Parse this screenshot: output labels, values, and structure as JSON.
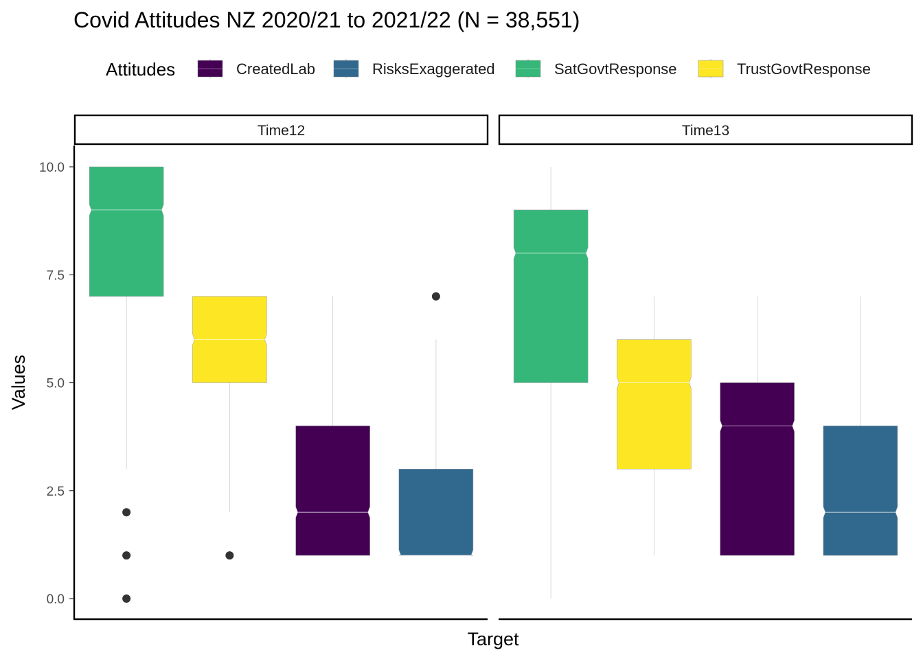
{
  "chart_data": {
    "type": "boxplot",
    "title": "Covid Attitudes NZ 2020/21 to 2021/22 (N = 38,551)",
    "xlabel": "Target",
    "ylabel": "Values",
    "ylim": [
      0,
      10
    ],
    "yticks": [
      "0.0",
      "2.5",
      "5.0",
      "7.5",
      "10.0"
    ],
    "legend": {
      "title": "Attitudes",
      "position": "top",
      "entries": [
        {
          "name": "CreatedLab",
          "color": "#440154"
        },
        {
          "name": "RisksExaggerated",
          "color": "#31688E"
        },
        {
          "name": "SatGovtResponse",
          "color": "#35B779"
        },
        {
          "name": "TrustGovtResponse",
          "color": "#FDE725"
        }
      ]
    },
    "notched": true,
    "grid": false,
    "panels": [
      {
        "label": "Time12",
        "boxes": [
          {
            "series": "SatGovtResponse",
            "color": "#35B779",
            "q1": 7,
            "median": 9,
            "q3": 10,
            "whisker_low": 3,
            "whisker_high": 10,
            "outliers": [
              0,
              1,
              2
            ]
          },
          {
            "series": "TrustGovtResponse",
            "color": "#FDE725",
            "q1": 5,
            "median": 6,
            "q3": 7,
            "whisker_low": 2,
            "whisker_high": 7,
            "outliers": [
              1
            ]
          },
          {
            "series": "CreatedLab",
            "color": "#440154",
            "q1": 1,
            "median": 2,
            "q3": 4,
            "whisker_low": 1,
            "whisker_high": 7,
            "outliers": []
          },
          {
            "series": "RisksExaggerated",
            "color": "#31688E",
            "q1": 1,
            "median": 1,
            "q3": 3,
            "whisker_low": 1,
            "whisker_high": 6,
            "outliers": [
              7
            ]
          }
        ]
      },
      {
        "label": "Time13",
        "boxes": [
          {
            "series": "SatGovtResponse",
            "color": "#35B779",
            "q1": 5,
            "median": 8,
            "q3": 9,
            "whisker_low": 0,
            "whisker_high": 10,
            "outliers": []
          },
          {
            "series": "TrustGovtResponse",
            "color": "#FDE725",
            "q1": 3,
            "median": 5,
            "q3": 6,
            "whisker_low": 1,
            "whisker_high": 7,
            "outliers": []
          },
          {
            "series": "CreatedLab",
            "color": "#440154",
            "q1": 1,
            "median": 4,
            "q3": 5,
            "whisker_low": 1,
            "whisker_high": 7,
            "outliers": []
          },
          {
            "series": "RisksExaggerated",
            "color": "#31688E",
            "q1": 1,
            "median": 2,
            "q3": 4,
            "whisker_low": 1,
            "whisker_high": 7,
            "outliers": []
          }
        ]
      }
    ]
  }
}
